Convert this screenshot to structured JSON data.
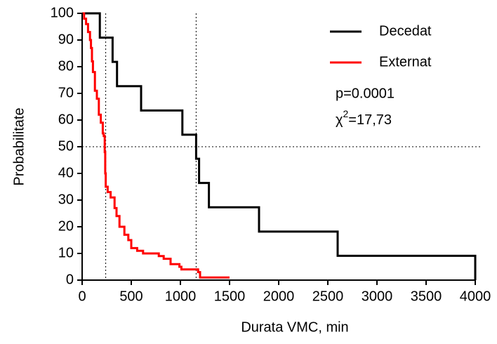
{
  "chart_data": {
    "type": "step",
    "xlabel": "Durata VMC, min",
    "ylabel": "Probabilitate",
    "xlim": [
      0,
      4000
    ],
    "ylim": [
      0,
      100
    ],
    "xticks": [
      0,
      500,
      1000,
      1500,
      2000,
      2500,
      3000,
      3500,
      4000
    ],
    "yticks": [
      0,
      10,
      20,
      30,
      40,
      50,
      60,
      70,
      80,
      90,
      100
    ],
    "hlines": [
      50
    ],
    "vlines": [
      240,
      1160
    ],
    "annotation_p": "p=0.0001",
    "annotation_chi": {
      "symbol": "χ",
      "sup": "2",
      "value": "=17,73"
    },
    "legend": "upper right",
    "series": [
      {
        "name": "Decedat",
        "color": "#000000",
        "x": [
          0,
          180,
          310,
          355,
          600,
          1020,
          1160,
          1190,
          1290,
          1800,
          2600,
          4000
        ],
        "values": [
          100,
          90.9,
          81.8,
          72.7,
          63.6,
          54.5,
          45.5,
          36.4,
          27.3,
          18.2,
          9.1,
          0
        ]
      },
      {
        "name": "Externat",
        "color": "#ff0000",
        "x": [
          0,
          20,
          40,
          60,
          80,
          90,
          100,
          110,
          130,
          150,
          170,
          190,
          210,
          220,
          230,
          235,
          240,
          260,
          290,
          330,
          350,
          380,
          430,
          470,
          500,
          560,
          620,
          780,
          830,
          900,
          990,
          1010,
          1180,
          1200,
          1500
        ],
        "values": [
          100,
          98,
          96,
          93,
          90,
          87,
          82,
          78,
          71,
          68,
          62,
          59,
          55,
          54,
          48,
          40,
          35,
          33,
          31,
          27,
          24,
          20,
          17,
          15,
          12,
          11,
          10,
          9,
          8,
          6,
          5,
          4,
          3,
          1,
          1
        ]
      }
    ]
  }
}
